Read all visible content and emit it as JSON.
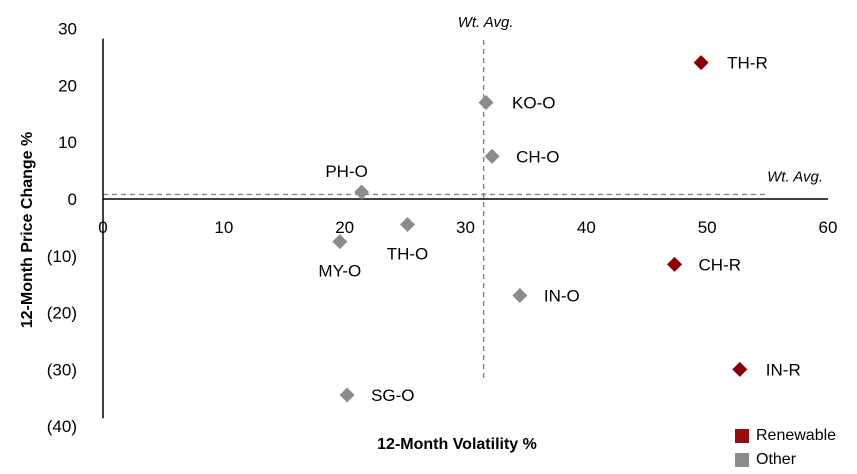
{
  "chart_data": {
    "type": "scatter",
    "xlabel": "12-Month Volatility %",
    "ylabel": "12-Month Price Change %",
    "xlim": [
      0,
      60
    ],
    "ylim": [
      -40,
      30
    ],
    "x_ticks": [
      "0",
      "10",
      "20",
      "30",
      "40",
      "50",
      "60"
    ],
    "y_ticks": [
      "30",
      "20",
      "10",
      "0",
      "(10)",
      "(20)",
      "(30)",
      "(40)"
    ],
    "wt_avg_x": 31.5,
    "wt_avg_y": 0.8,
    "wt_avg_x_label": "Wt. Avg.",
    "wt_avg_y_label": "Wt. Avg.",
    "series": [
      {
        "name": "Renewable",
        "color": "#8b0000",
        "points": [
          {
            "label": "TH-R",
            "x": 49.5,
            "y": 24
          },
          {
            "label": "CH-R",
            "x": 47.3,
            "y": -11.5
          },
          {
            "label": "IN-R",
            "x": 52.7,
            "y": -30
          }
        ]
      },
      {
        "name": "Other",
        "color": "#8c8c8c",
        "points": [
          {
            "label": "KO-O",
            "x": 31.7,
            "y": 17
          },
          {
            "label": "CH-O",
            "x": 32.2,
            "y": 7.5
          },
          {
            "label": "PH-O",
            "x": 21.4,
            "y": 1.2
          },
          {
            "label": "TH-O",
            "x": 25.2,
            "y": -4.5
          },
          {
            "label": "MY-O",
            "x": 19.6,
            "y": -7.5
          },
          {
            "label": "IN-O",
            "x": 34.5,
            "y": -17
          },
          {
            "label": "SG-O",
            "x": 20.2,
            "y": -34.5
          }
        ]
      }
    ],
    "legend": {
      "position": "bottom-right",
      "entries": [
        "Renewable",
        "Other"
      ]
    }
  }
}
